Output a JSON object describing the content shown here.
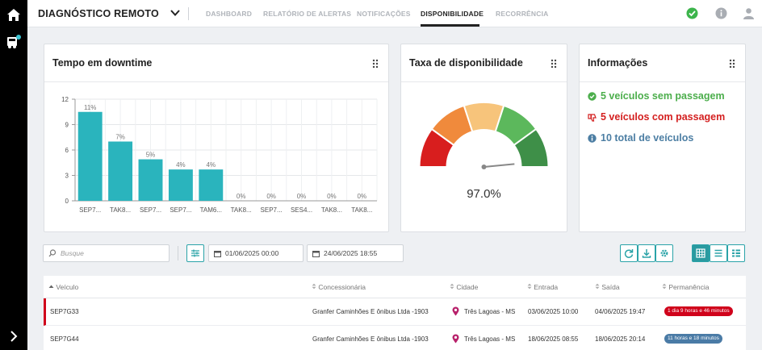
{
  "app": {
    "title": "DIAGNÓSTICO REMOTO",
    "nav": [
      {
        "label": "DASHBOARD",
        "active": false
      },
      {
        "label": "RELATÓRIO DE ALERTAS",
        "active": false
      },
      {
        "label": "NOTIFICAÇÕES",
        "active": false
      },
      {
        "label": "DISPONIBILIDADE",
        "active": true
      },
      {
        "label": "RECORRÊNCIA",
        "active": false
      }
    ],
    "status_color": "#3cb44b",
    "accent": "#2ab4bd"
  },
  "downtime": {
    "title": "Tempo em downtime",
    "chart_data": {
      "type": "bar",
      "categories": [
        "SEP7...",
        "TAK8...",
        "SEP7...",
        "SEP7...",
        "TAM6...",
        "TAK8...",
        "SEP7...",
        "SES4...",
        "TAK8...",
        "TAK8..."
      ],
      "values": [
        10.5,
        7,
        4.9,
        3.7,
        3.7,
        0,
        0,
        0,
        0,
        0
      ],
      "data_labels": [
        "11%",
        "7%",
        "5%",
        "4%",
        "4%",
        "0%",
        "0%",
        "0%",
        "0%",
        "0%"
      ],
      "yticks": [
        "12",
        "9",
        "6",
        "3",
        "0"
      ],
      "ylim": [
        0,
        12
      ],
      "grid": true,
      "color": "#2ab4bd"
    }
  },
  "availability": {
    "title": "Taxa de disponibilidade",
    "value_label": "97.0%",
    "value": 97.0,
    "segment_colors": [
      "#d81e1e",
      "#f08a3c",
      "#f7c47b",
      "#5cb85c",
      "#3e8f48"
    ]
  },
  "info": {
    "title": "Informações",
    "lines": [
      {
        "text": "5 veículos sem passagem",
        "color": "#4cae4c",
        "icon": "check-circle-icon"
      },
      {
        "text": "5 veículos com passagem",
        "color": "#d42020",
        "icon": "thumbs-down-icon"
      },
      {
        "text": "10 total de veículos",
        "color": "#4c7ea3",
        "icon": "info-circle-icon"
      }
    ]
  },
  "filters": {
    "search_placeholder": "Busque",
    "date_start": "01/06/2025 00:00",
    "date_end": "24/06/2025 18:55"
  },
  "table": {
    "columns": [
      "Veículo",
      "Concessionária",
      "Cidade",
      "Entrada",
      "Saída",
      "Permanência"
    ],
    "rows": [
      {
        "vehicle": "SEP7G33",
        "dealer": "Granfer Caminhões E ônibus Ltda -1903",
        "city": "Três Lagoas - MS",
        "entry": "03/06/2025 10:00",
        "exit": "04/06/2025 19:47",
        "stay": "1 dia 9 horas e 46 minutos",
        "stay_color": "#d0021b",
        "alert": true
      },
      {
        "vehicle": "SEP7G44",
        "dealer": "Granfer Caminhões E ônibus Ltda -1903",
        "city": "Três Lagoas - MS",
        "entry": "18/06/2025 08:55",
        "exit": "18/06/2025 20:14",
        "stay": "11 horas e 18 minutos",
        "stay_color": "#4a7ba6",
        "alert": false
      }
    ]
  }
}
